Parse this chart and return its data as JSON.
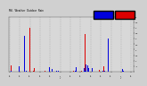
{
  "title": "Mil.  Weather  Outdoor  Rain",
  "legend_color_current": "#0000dd",
  "legend_color_previous": "#dd0000",
  "background_color": "#d0d0d0",
  "plot_background": "#d8d8d8",
  "grid_color": "#999999",
  "grid_style": "--",
  "ylim_min": 0,
  "ylim_max": 5,
  "num_points": 730,
  "seed": 7,
  "ytick_labels": [
    "",
    ".5",
    "1",
    "1.5",
    "2",
    "2.5",
    "3",
    "3.5",
    "4",
    "4.5",
    "5"
  ],
  "ytick_vals": [
    0,
    0.5,
    1.0,
    1.5,
    2.0,
    2.5,
    3.0,
    3.5,
    4.0,
    4.5,
    5.0
  ]
}
